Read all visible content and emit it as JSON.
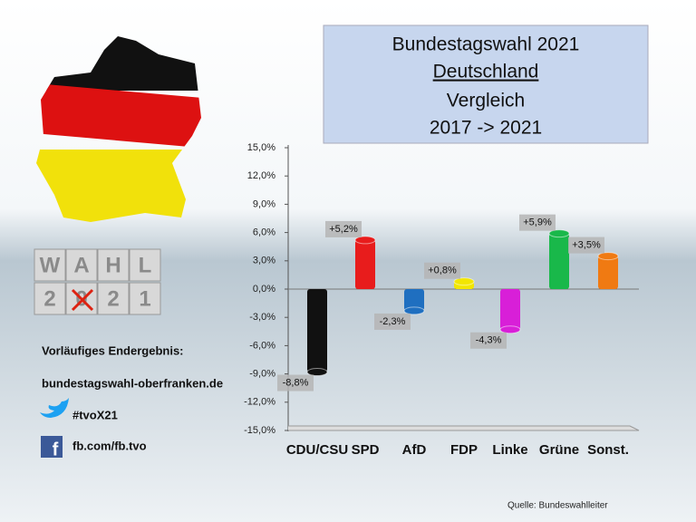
{
  "chart_data": {
    "type": "bar",
    "title_lines": [
      "Bundestagswahl 2021",
      "Deutschland",
      "Vergleich",
      "2017 -> 2021"
    ],
    "categories": [
      "CDU/CSU",
      "SPD",
      "AfD",
      "FDP",
      "Linke",
      "Grüne",
      "Sonst."
    ],
    "values": [
      -8.8,
      5.2,
      -2.3,
      0.8,
      -4.3,
      5.9,
      3.5
    ],
    "value_labels": [
      "-8,8%",
      "+5,2%",
      "-2,3%",
      "+0,8%",
      "-4,3%",
      "+5,9%",
      "+3,5%"
    ],
    "colors": [
      "#111111",
      "#e81c1c",
      "#1f6fc0",
      "#f2e600",
      "#d81fd8",
      "#19b84a",
      "#f07a12"
    ],
    "ylim": [
      -15,
      15
    ],
    "yticks": [
      {
        "value": 15,
        "label": "15,0%"
      },
      {
        "value": 12,
        "label": "12,0%"
      },
      {
        "value": 9,
        "label": "9,0%"
      },
      {
        "value": 6,
        "label": "6,0%"
      },
      {
        "value": 3,
        "label": "3,0%"
      },
      {
        "value": 0,
        "label": "0,0%"
      },
      {
        "value": -3,
        "label": "-3,0%"
      },
      {
        "value": -6,
        "label": "-6,0%"
      },
      {
        "value": -9,
        "label": "-9,0%"
      },
      {
        "value": -12,
        "label": "-12,0%"
      },
      {
        "value": -15,
        "label": "-15,0%"
      }
    ],
    "source": "Quelle: Bundeswahlleiter"
  },
  "sidebar": {
    "logo": [
      "W",
      "A",
      "H",
      "L",
      "2",
      "0",
      "2",
      "1"
    ],
    "status": "Vorläufiges Endergebnis:",
    "website": "bundestagswahl-oberfranken.de",
    "twitter": "#tvoX21",
    "facebook": "fb.com/fb.tvo"
  }
}
